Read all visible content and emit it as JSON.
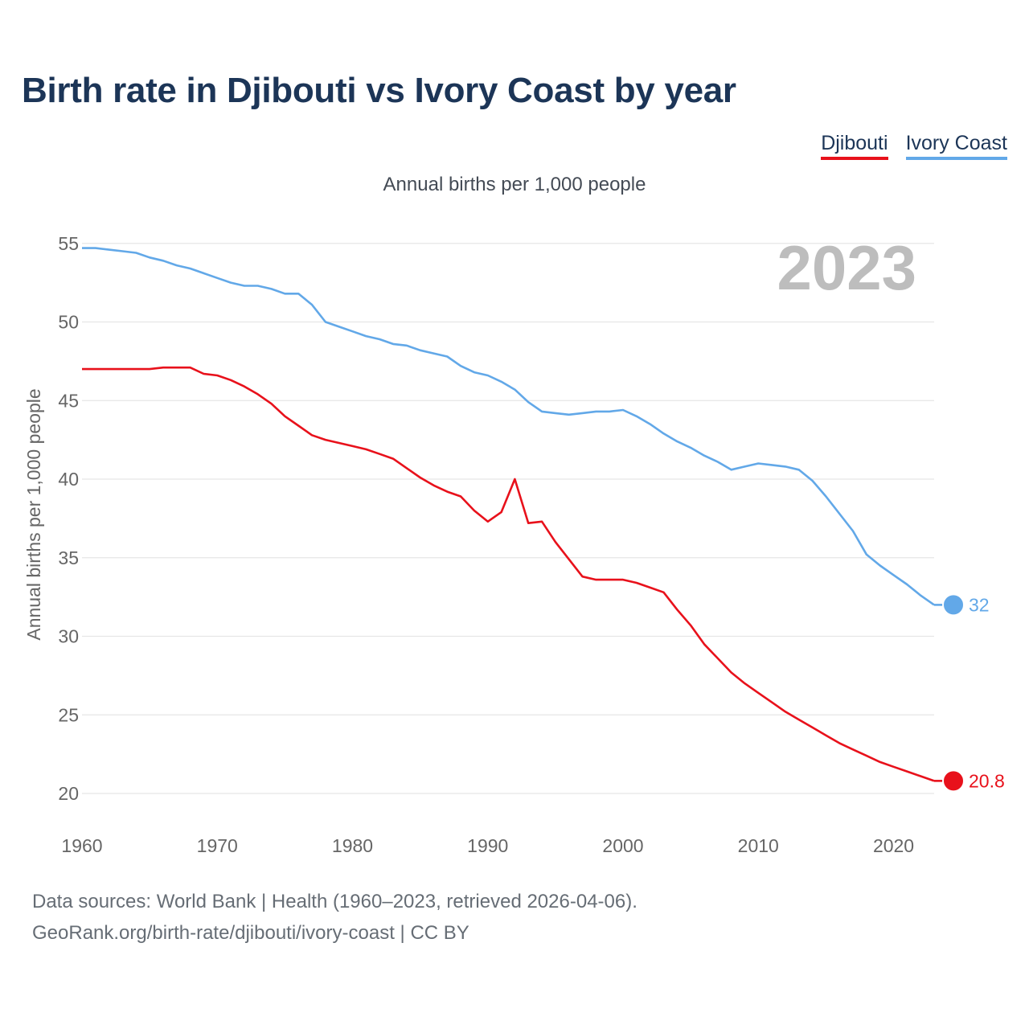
{
  "title": "Birth rate in Djibouti vs Ivory Coast by year",
  "subtitle": "Annual births per 1,000 people",
  "colors": {
    "djibouti": "#e8111b",
    "ivory_coast": "#62a8e8",
    "grid": "#e6e6e6",
    "axis_text": "#666666",
    "watermark": "#bdbdbd",
    "title": "#1c3557"
  },
  "legend": [
    {
      "label": "Djibouti",
      "color": "#e8111b"
    },
    {
      "label": "Ivory Coast",
      "color": "#62a8e8"
    }
  ],
  "chart_data": {
    "type": "line",
    "title": "Birth rate in Djibouti vs Ivory Coast by year",
    "ylabel": "Annual births per 1,000 people",
    "xlabel": "",
    "year_watermark": "2023",
    "xlim": [
      1960,
      2023
    ],
    "ylim": [
      18,
      56
    ],
    "x_ticks": [
      1960,
      1970,
      1980,
      1990,
      2000,
      2010,
      2020
    ],
    "y_ticks": [
      20,
      25,
      30,
      35,
      40,
      45,
      50,
      55
    ],
    "x": [
      1960,
      1961,
      1962,
      1963,
      1964,
      1965,
      1966,
      1967,
      1968,
      1969,
      1970,
      1971,
      1972,
      1973,
      1974,
      1975,
      1976,
      1977,
      1978,
      1979,
      1980,
      1981,
      1982,
      1983,
      1984,
      1985,
      1986,
      1987,
      1988,
      1989,
      1990,
      1991,
      1992,
      1993,
      1994,
      1995,
      1996,
      1997,
      1998,
      1999,
      2000,
      2001,
      2002,
      2003,
      2004,
      2005,
      2006,
      2007,
      2008,
      2009,
      2010,
      2011,
      2012,
      2013,
      2014,
      2015,
      2016,
      2017,
      2018,
      2019,
      2020,
      2021,
      2022,
      2023
    ],
    "series": [
      {
        "name": "Djibouti",
        "color": "#e8111b",
        "end_label": "20.8",
        "values": [
          47,
          47,
          47,
          47,
          47,
          47,
          47.1,
          47.1,
          47.1,
          46.7,
          46.6,
          46.3,
          45.9,
          45.4,
          44.8,
          44.0,
          43.4,
          42.8,
          42.5,
          42.3,
          42.1,
          41.9,
          41.6,
          41.3,
          40.7,
          40.1,
          39.6,
          39.2,
          38.9,
          38.0,
          37.3,
          37.9,
          40.0,
          37.2,
          37.3,
          36.0,
          34.9,
          33.8,
          33.6,
          33.6,
          33.6,
          33.4,
          33.1,
          32.8,
          31.7,
          30.7,
          29.5,
          28.6,
          27.7,
          27.0,
          26.4,
          25.8,
          25.2,
          24.7,
          24.2,
          23.7,
          23.2,
          22.8,
          22.4,
          22.0,
          21.7,
          21.4,
          21.1,
          20.8
        ]
      },
      {
        "name": "Ivory Coast",
        "color": "#62a8e8",
        "end_label": "32",
        "values": [
          54.7,
          54.7,
          54.6,
          54.5,
          54.4,
          54.1,
          53.9,
          53.6,
          53.4,
          53.1,
          52.8,
          52.5,
          52.3,
          52.3,
          52.1,
          51.8,
          51.8,
          51.1,
          50.0,
          49.7,
          49.4,
          49.1,
          48.9,
          48.6,
          48.5,
          48.2,
          48.0,
          47.8,
          47.2,
          46.8,
          46.6,
          46.2,
          45.7,
          44.9,
          44.3,
          44.2,
          44.1,
          44.2,
          44.3,
          44.3,
          44.4,
          44.0,
          43.5,
          42.9,
          42.4,
          42.0,
          41.5,
          41.1,
          40.6,
          40.8,
          41.0,
          40.9,
          40.8,
          40.6,
          39.9,
          38.9,
          37.8,
          36.7,
          35.2,
          34.5,
          33.9,
          33.3,
          32.6,
          32.0
        ]
      }
    ]
  },
  "footer": {
    "line1": "Data sources: World Bank | Health (1960–2023, retrieved 2026-04-06).",
    "line2": "GeoRank.org/birth-rate/djibouti/ivory-coast | CC BY"
  }
}
